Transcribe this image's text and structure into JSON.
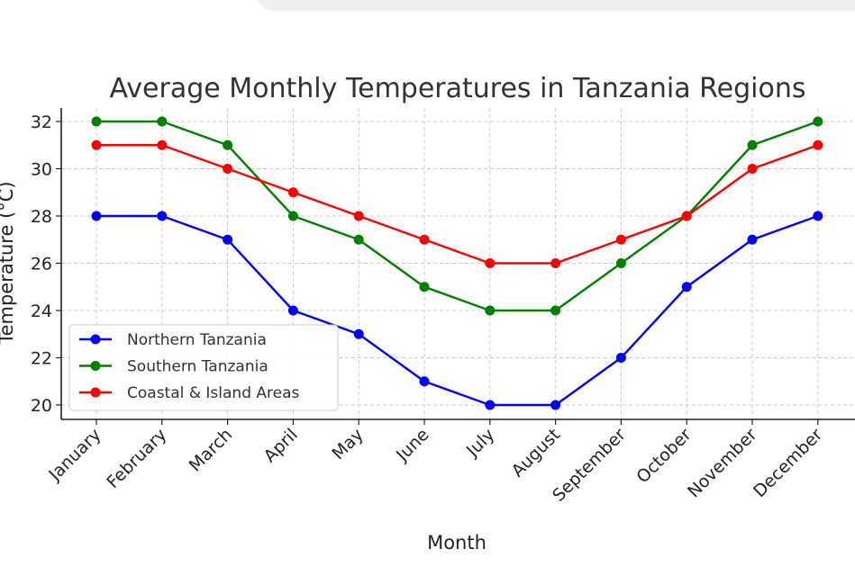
{
  "chart_data": {
    "type": "line",
    "title": "Average Monthly Temperatures in Tanzania Regions",
    "xlabel": "Month",
    "ylabel": "Temperature (°C)",
    "categories": [
      "January",
      "February",
      "March",
      "April",
      "May",
      "June",
      "July",
      "August",
      "September",
      "October",
      "November",
      "December"
    ],
    "series": [
      {
        "name": "Northern Tanzania",
        "color": "#0000ff",
        "values": [
          28,
          28,
          27,
          24,
          23,
          21,
          20,
          20,
          22,
          25,
          27,
          28
        ]
      },
      {
        "name": "Southern Tanzania",
        "color": "#008000",
        "values": [
          32,
          32,
          31,
          28,
          27,
          25,
          24,
          24,
          26,
          28,
          31,
          32
        ]
      },
      {
        "name": "Coastal & Island Areas",
        "color": "#ff0000",
        "values": [
          31,
          31,
          30,
          29,
          28,
          27,
          26,
          26,
          27,
          28,
          30,
          31
        ]
      }
    ],
    "yticks": [
      20,
      22,
      24,
      26,
      28,
      30,
      32
    ],
    "ylim": [
      19.5,
      32.6
    ],
    "grid": true,
    "legend_position": "bottom-left"
  }
}
